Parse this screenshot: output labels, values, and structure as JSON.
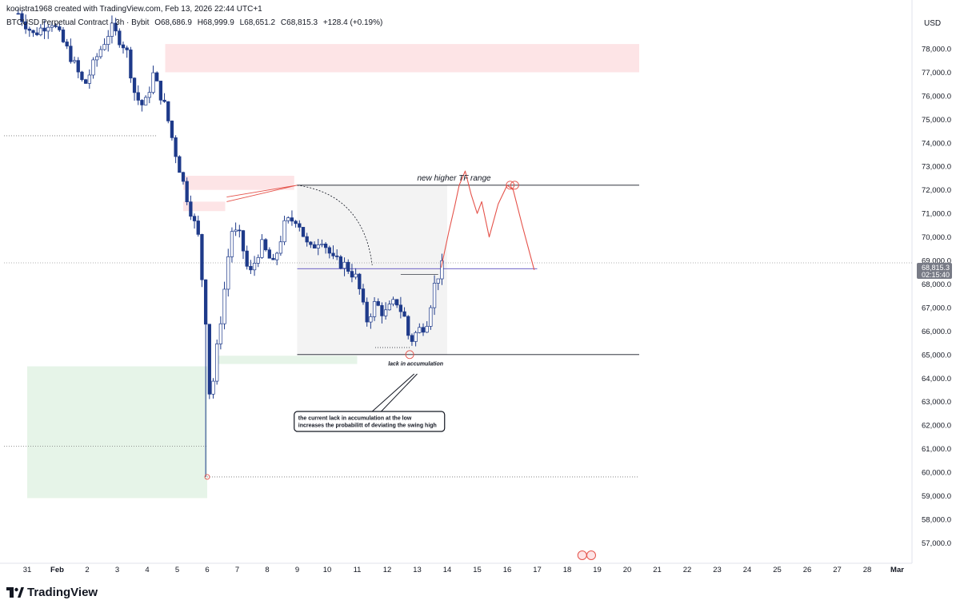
{
  "header": {
    "attribution": "kooistra1968 created with TradingView.com, Feb 13, 2026 22:44 UTC+1",
    "symbol": "BTCUSD Perpetual Contract · 3h · Bybit",
    "ohlc": {
      "open": "O68,686.9",
      "high": "H68,999.9",
      "low": "L68,651.2",
      "close": "C68,815.3",
      "change": "+128.4 (+0.19%)"
    },
    "currency": "USD"
  },
  "price_tag": {
    "price": "68,815.3",
    "countdown": "02:15:40"
  },
  "brand": {
    "name": "TradingView",
    "color": "#131722"
  },
  "colors": {
    "up_candle": "#ffffff",
    "down_candle": "#1e3a8a",
    "supply_zone": "#fde4e6",
    "demand_zone": "#e6f4e8",
    "range_fill": "#f3f3f3",
    "drawing_red": "#e5534b",
    "midline": "#5b4fbf"
  },
  "chart_data": {
    "type": "candlestick",
    "y_axis": {
      "ticks": [
        "57,000.0",
        "58,000.0",
        "59,000.0",
        "60,000.0",
        "61,000.0",
        "62,000.0",
        "63,000.0",
        "64,000.0",
        "65,000.0",
        "66,000.0",
        "67,000.0",
        "68,000.0",
        "69,000.0",
        "70,000.0",
        "71,000.0",
        "72,000.0",
        "73,000.0",
        "74,000.0",
        "75,000.0",
        "76,000.0",
        "77,000.0",
        "78,000.0"
      ],
      "range": [
        56300,
        79800
      ]
    },
    "x_axis": {
      "ticks": [
        "31",
        "Feb",
        "2",
        "3",
        "4",
        "5",
        "6",
        "7",
        "8",
        "9",
        "10",
        "11",
        "12",
        "13",
        "14",
        "15",
        "16",
        "17",
        "18",
        "19",
        "20",
        "21",
        "22",
        "23",
        "24",
        "25",
        "26",
        "27",
        "28",
        "Mar"
      ]
    },
    "range_box": {
      "high": 72200,
      "low": 65000,
      "mid": 68650,
      "start_day": 9,
      "end_day": 14
    },
    "supply_zones": [
      {
        "from_day": 4.6,
        "to_day": 20.4,
        "low": 77000,
        "high": 78200
      },
      {
        "from_day": 5.2,
        "to_day": 8.9,
        "low": 72000,
        "high": 72600
      },
      {
        "from_day": 5.2,
        "to_day": 6.6,
        "low": 71100,
        "high": 71500
      }
    ],
    "demand_zones": [
      {
        "from_day": 0,
        "to_day": 6.0,
        "low": 58900,
        "high": 64500
      },
      {
        "from_day": 6.3,
        "to_day": 11.0,
        "low": 64600,
        "high": 64950
      }
    ],
    "reference_levels": [
      74300,
      61100,
      59800,
      68900
    ],
    "annotations": {
      "range_label": "new higher TF range",
      "accumulation_label": "lack in accumulation",
      "callout_line1": "the current lack in accumulation at the low",
      "callout_line2": "increases the probabilitt of deviating the swing high"
    },
    "projection_path": [
      [
        13.8,
        68700
      ],
      [
        14.05,
        70200
      ],
      [
        14.25,
        71300
      ],
      [
        14.4,
        72200
      ],
      [
        14.6,
        72800
      ],
      [
        14.8,
        71800
      ],
      [
        15.0,
        71000
      ],
      [
        15.15,
        71500
      ],
      [
        15.4,
        70000
      ],
      [
        15.7,
        71400
      ],
      [
        16.0,
        72200
      ],
      [
        16.2,
        72000
      ],
      [
        16.5,
        70500
      ],
      [
        16.9,
        68600
      ]
    ]
  }
}
